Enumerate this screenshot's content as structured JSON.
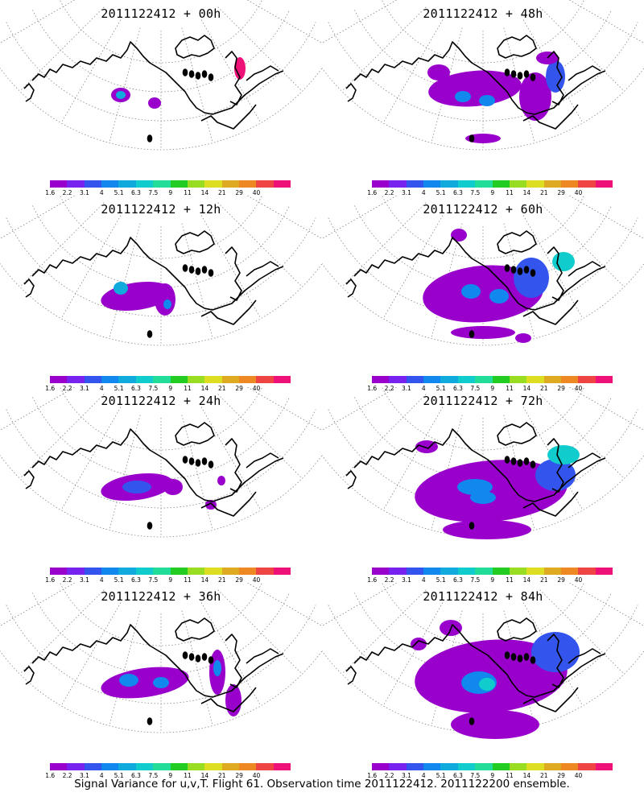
{
  "panels": [
    {
      "title": "2011122412 + 00h"
    },
    {
      "title": "2011122412 + 48h"
    },
    {
      "title": "2011122412 + 12h"
    },
    {
      "title": "2011122412 + 60h"
    },
    {
      "title": "2011122412 + 24h"
    },
    {
      "title": "2011122412 + 72h"
    },
    {
      "title": "2011122412 + 36h"
    },
    {
      "title": "2011122412 + 84h"
    }
  ],
  "colorbar": {
    "labels": [
      "1.6",
      "2.2",
      "3.1",
      "4",
      "5.1",
      "6.3",
      "7.5",
      "9",
      "11",
      "14",
      "21",
      "29",
      "40"
    ],
    "colors": [
      "#9900cc",
      "#7722ee",
      "#3355ee",
      "#1188ee",
      "#11aadd",
      "#11cccc",
      "#22dd99",
      "#22cc22",
      "#99dd22",
      "#dddd22",
      "#ddaa22",
      "#ee8822",
      "#ee4444",
      "#ee1177"
    ]
  },
  "footer": "Signal Variance for u,v,T. Flight 61. Observation time 2011122412. 2011122200 ensemble."
}
